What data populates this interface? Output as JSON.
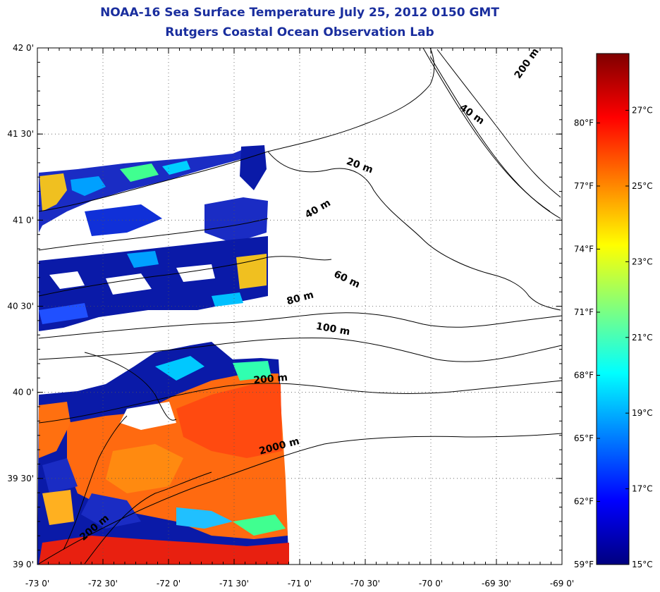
{
  "title_line1": "NOAA-16 Sea Surface Temperature July 25, 2012 0150 GMT",
  "title_line2": "Rutgers Coastal Ocean Observation Lab",
  "map": {
    "lon_range": [
      -73,
      -69
    ],
    "lat_range": [
      39,
      42
    ],
    "grid": "dotted",
    "lon_ticks": [
      {
        "value": -73,
        "label": "-73 0'"
      },
      {
        "value": -72.5,
        "label": "-72 30'"
      },
      {
        "value": -72,
        "label": "-72 0'"
      },
      {
        "value": -71.5,
        "label": "-71 30'"
      },
      {
        "value": -71,
        "label": "-71 0'"
      },
      {
        "value": -70.5,
        "label": "-70 30'"
      },
      {
        "value": -70,
        "label": "-70 0'"
      },
      {
        "value": -69.5,
        "label": "-69 30'"
      },
      {
        "value": -69,
        "label": "-69 0'"
      }
    ],
    "lat_ticks": [
      {
        "value": 42,
        "label": "42 0'"
      },
      {
        "value": 41.5,
        "label": "41 30'"
      },
      {
        "value": 41,
        "label": "41 0'"
      },
      {
        "value": 40.5,
        "label": "40 30'"
      },
      {
        "value": 40,
        "label": "40 0'"
      },
      {
        "value": 39.5,
        "label": "39 30'"
      },
      {
        "value": 39,
        "label": "39 0'"
      }
    ],
    "depth_labels": [
      {
        "text": "200 m",
        "lon": -69.25,
        "lat": 41.9,
        "angle": -55
      },
      {
        "text": "40 m",
        "lon": -69.7,
        "lat": 41.6,
        "angle": 35
      },
      {
        "text": "20 m",
        "lon": -70.55,
        "lat": 41.3,
        "angle": 20
      },
      {
        "text": "40 m",
        "lon": -70.85,
        "lat": 41.05,
        "angle": -30
      },
      {
        "text": "60 m",
        "lon": -70.65,
        "lat": 40.64,
        "angle": 25
      },
      {
        "text": "80 m",
        "lon": -70.99,
        "lat": 40.53,
        "angle": -15
      },
      {
        "text": "100 m",
        "lon": -70.75,
        "lat": 40.35,
        "angle": 10
      },
      {
        "text": "200 m",
        "lon": -71.22,
        "lat": 40.06,
        "angle": -5
      },
      {
        "text": "2000 m",
        "lon": -71.15,
        "lat": 39.67,
        "angle": -15
      },
      {
        "text": "200 m",
        "lon": -72.55,
        "lat": 39.2,
        "angle": -40
      }
    ]
  },
  "colorbar": {
    "min_c": 15,
    "max_c": 28.5,
    "celsius_ticks": [
      {
        "value": 27,
        "label": "27°C"
      },
      {
        "value": 25,
        "label": "25°C"
      },
      {
        "value": 23,
        "label": "23°C"
      },
      {
        "value": 21,
        "label": "21°C"
      },
      {
        "value": 19,
        "label": "19°C"
      },
      {
        "value": 17,
        "label": "17°C"
      },
      {
        "value": 15,
        "label": "15°C"
      }
    ],
    "fahrenheit_ticks": [
      {
        "value": 80,
        "label": "80°F"
      },
      {
        "value": 77,
        "label": "77°F"
      },
      {
        "value": 74,
        "label": "74°F"
      },
      {
        "value": 71,
        "label": "71°F"
      },
      {
        "value": 68,
        "label": "68°F"
      },
      {
        "value": 65,
        "label": "65°F"
      },
      {
        "value": 62,
        "label": "62°F"
      },
      {
        "value": 59,
        "label": "59°F"
      }
    ],
    "colors": [
      "#00007f",
      "#0000ff",
      "#007fff",
      "#00ffff",
      "#7fff7f",
      "#ffff00",
      "#ff7f00",
      "#ff0000",
      "#7f0000"
    ]
  }
}
